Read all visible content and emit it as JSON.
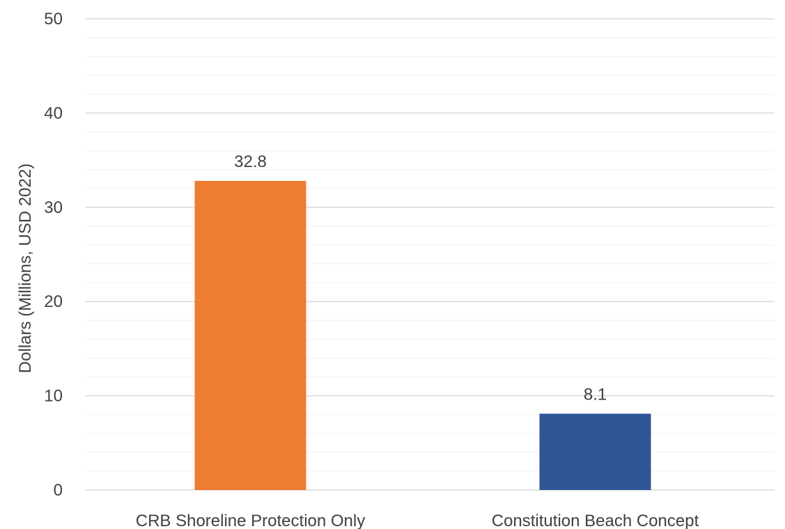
{
  "chart_data": {
    "type": "bar",
    "categories": [
      "CRB Shoreline Protection Only",
      "Constitution Beach Concept"
    ],
    "values": [
      32.8,
      8.1
    ],
    "data_labels": [
      "32.8",
      "8.1"
    ],
    "bar_colors": [
      "#ED7D31",
      "#2F5597"
    ],
    "title": "",
    "xlabel": "",
    "ylabel": "Dollars (Millions, USD 2022)",
    "ylim": [
      0,
      50
    ],
    "yticks": [
      0,
      10,
      20,
      30,
      40,
      50
    ],
    "ytick_labels": [
      "0",
      "10",
      "20",
      "30",
      "40",
      "50"
    ],
    "major_gridlines": true,
    "minor_gridlines": true,
    "legend": "none"
  }
}
